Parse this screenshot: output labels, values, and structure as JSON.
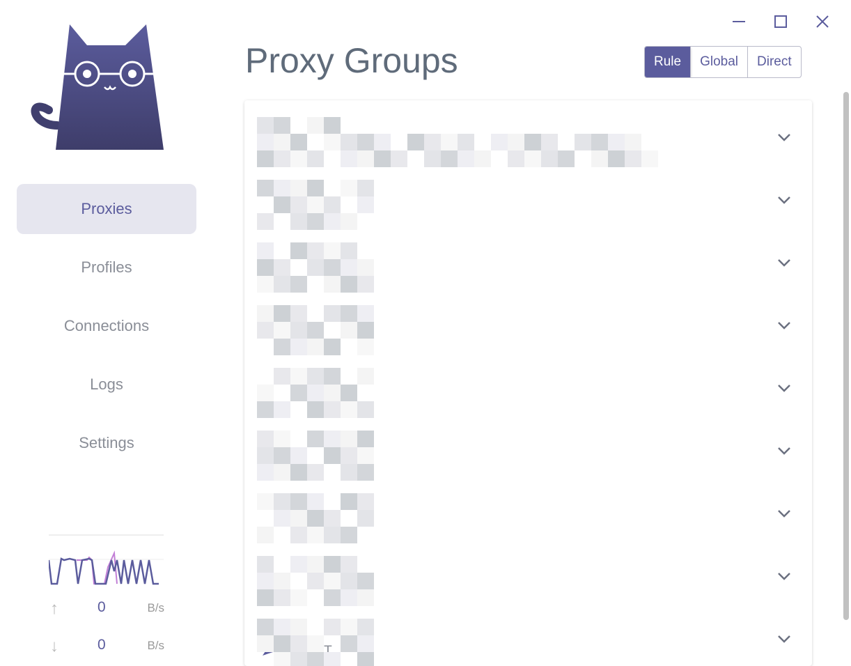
{
  "window": {
    "minimize": "minimize",
    "maximize": "maximize",
    "close": "close"
  },
  "sidebar": {
    "items": [
      {
        "label": "Proxies",
        "active": true
      },
      {
        "label": "Profiles"
      },
      {
        "label": "Connections"
      },
      {
        "label": "Logs"
      },
      {
        "label": "Settings"
      }
    ]
  },
  "traffic": {
    "upload_value": "0",
    "upload_unit": "B/s",
    "download_value": "0",
    "download_unit": "B/s",
    "colors": {
      "up": "#5b5c9d",
      "down": "#c27fd6"
    }
  },
  "header": {
    "title": "Proxy Groups",
    "modes": [
      {
        "label": "Rule",
        "selected": true
      },
      {
        "label": "Global"
      },
      {
        "label": "Direct"
      }
    ]
  },
  "groups": {
    "count": 9,
    "last_selected": "DIRECT"
  },
  "colors": {
    "accent": "#5b5c9d"
  }
}
